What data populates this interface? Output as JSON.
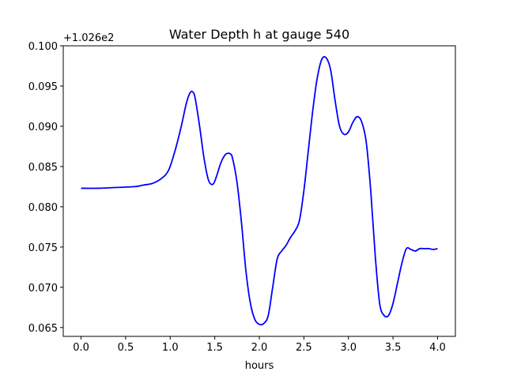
{
  "chart_data": {
    "type": "line",
    "title": "Water Depth h at gauge 540",
    "xlabel": "hours",
    "ylabel": "",
    "offset_label": "+1.026e2",
    "xlim": [
      -0.2,
      4.2
    ],
    "ylim": [
      0.0639,
      0.1
    ],
    "xticks": [
      0.0,
      0.5,
      1.0,
      1.5,
      2.0,
      2.5,
      3.0,
      3.5,
      4.0
    ],
    "xtick_labels": [
      "0.0",
      "0.5",
      "1.0",
      "1.5",
      "2.0",
      "2.5",
      "3.0",
      "3.5",
      "4.0"
    ],
    "yticks": [
      0.065,
      0.07,
      0.075,
      0.08,
      0.085,
      0.09,
      0.095,
      0.1
    ],
    "ytick_labels": [
      "0.065",
      "0.070",
      "0.075",
      "0.080",
      "0.085",
      "0.090",
      "0.095",
      "0.100"
    ],
    "grid": false,
    "series": [
      {
        "color": "#0000ff",
        "x": [
          0.0,
          0.2,
          0.4,
          0.6,
          0.7,
          0.8,
          0.9,
          0.98,
          1.05,
          1.12,
          1.18,
          1.22,
          1.25,
          1.28,
          1.33,
          1.38,
          1.43,
          1.48,
          1.52,
          1.57,
          1.62,
          1.67,
          1.7,
          1.75,
          1.8,
          1.85,
          1.9,
          1.95,
          2.0,
          2.05,
          2.1,
          2.15,
          2.2,
          2.25,
          2.3,
          2.35,
          2.4,
          2.45,
          2.5,
          2.55,
          2.6,
          2.65,
          2.7,
          2.75,
          2.8,
          2.85,
          2.9,
          2.95,
          3.0,
          3.05,
          3.1,
          3.15,
          3.2,
          3.25,
          3.3,
          3.35,
          3.4,
          3.45,
          3.5,
          3.55,
          3.6,
          3.65,
          3.7,
          3.75,
          3.8,
          3.85,
          3.9,
          3.95,
          4.0
        ],
        "y": [
          0.0823,
          0.0823,
          0.0824,
          0.0825,
          0.0827,
          0.0829,
          0.0835,
          0.0845,
          0.0868,
          0.0898,
          0.0928,
          0.0941,
          0.0943,
          0.0935,
          0.09,
          0.086,
          0.0833,
          0.0828,
          0.0838,
          0.0855,
          0.0865,
          0.0866,
          0.086,
          0.083,
          0.078,
          0.072,
          0.068,
          0.066,
          0.0654,
          0.0655,
          0.0665,
          0.07,
          0.0735,
          0.0745,
          0.0752,
          0.0762,
          0.077,
          0.0783,
          0.082,
          0.087,
          0.092,
          0.096,
          0.0983,
          0.0985,
          0.097,
          0.0932,
          0.09,
          0.089,
          0.0893,
          0.0905,
          0.0912,
          0.0905,
          0.088,
          0.082,
          0.074,
          0.068,
          0.0665,
          0.0665,
          0.068,
          0.0705,
          0.073,
          0.0748,
          0.0747,
          0.0745,
          0.0748,
          0.0748,
          0.0748,
          0.0747,
          0.0748
        ]
      }
    ]
  }
}
